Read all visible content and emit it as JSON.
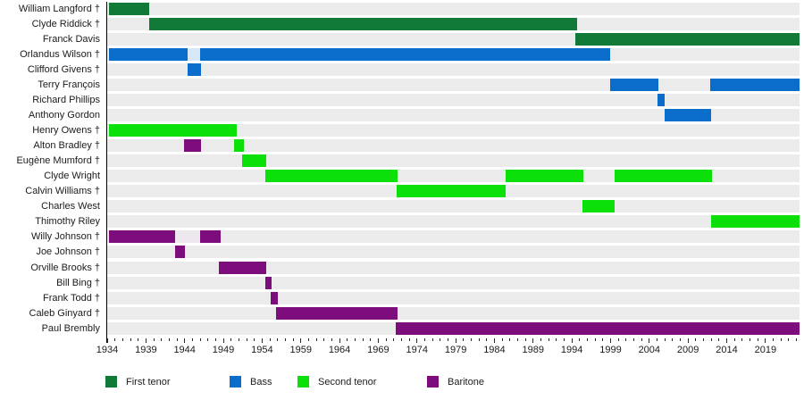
{
  "chart_data": {
    "type": "timeline",
    "title": "",
    "x_axis": {
      "min": 1934,
      "max": 2023.4,
      "major_ticks": [
        1934,
        1939,
        1944,
        1949,
        1954,
        1959,
        1964,
        1969,
        1974,
        1979,
        1984,
        1989,
        1994,
        1999,
        2004,
        2009,
        2014,
        2019
      ],
      "minor_tick_every": 1
    },
    "parts": {
      "first_tenor": {
        "label": "First tenor",
        "color": "#127a38"
      },
      "bass": {
        "label": "Bass",
        "color": "#0b6dcb"
      },
      "second_tenor": {
        "label": "Second tenor",
        "color": "#0be00b"
      },
      "baritone": {
        "label": "Baritone",
        "color": "#7d0c7d"
      },
      "bass_leave": {
        "label": "",
        "color": "#d9e8f8"
      },
      "baritone_leave": {
        "label": "",
        "color": "#ece8ee"
      }
    },
    "legend": [
      {
        "part": "first_tenor",
        "label": "First tenor"
      },
      {
        "part": "bass",
        "label": "Bass"
      },
      {
        "part": "second_tenor",
        "label": "Second tenor"
      },
      {
        "part": "baritone",
        "label": "Baritone"
      }
    ],
    "members": [
      {
        "name": "William Langford †",
        "segments": [
          {
            "part": "first_tenor",
            "start": 1934.2,
            "end": 1939.4
          }
        ]
      },
      {
        "name": "Clyde Riddick †",
        "segments": [
          {
            "part": "first_tenor",
            "start": 1939.4,
            "end": 1994.7
          }
        ]
      },
      {
        "name": "Franck Davis",
        "segments": [
          {
            "part": "first_tenor",
            "start": 1994.4,
            "end": 2023.4
          }
        ]
      },
      {
        "name": "Orlandus Wilson †",
        "segments": [
          {
            "part": "bass",
            "start": 1934.2,
            "end": 1944.4
          },
          {
            "part": "bass_leave",
            "start": 1944.4,
            "end": 1946.0
          },
          {
            "part": "bass",
            "start": 1946.0,
            "end": 1999.0
          }
        ]
      },
      {
        "name": "Clifford Givens †",
        "segments": [
          {
            "part": "bass",
            "start": 1944.4,
            "end": 1946.1
          }
        ]
      },
      {
        "name": "Terry François",
        "segments": [
          {
            "part": "bass",
            "start": 1999.0,
            "end": 2005.2
          },
          {
            "part": "bass",
            "start": 2011.9,
            "end": 2023.4
          }
        ]
      },
      {
        "name": "Richard Phillips",
        "segments": [
          {
            "part": "bass",
            "start": 2005.1,
            "end": 2006.0
          }
        ]
      },
      {
        "name": "Anthony Gordon",
        "segments": [
          {
            "part": "bass",
            "start": 2006.0,
            "end": 2012.0
          }
        ]
      },
      {
        "name": "Henry Owens †",
        "segments": [
          {
            "part": "second_tenor",
            "start": 1934.2,
            "end": 1950.7
          }
        ]
      },
      {
        "name": "Alton Bradley †",
        "segments": [
          {
            "part": "baritone",
            "start": 1943.9,
            "end": 1946.1
          },
          {
            "part": "second_tenor",
            "start": 1950.4,
            "end": 1951.6
          }
        ]
      },
      {
        "name": "Eugène Mumford †",
        "segments": [
          {
            "part": "second_tenor",
            "start": 1951.4,
            "end": 1954.5
          }
        ]
      },
      {
        "name": "Clyde Wright",
        "segments": [
          {
            "part": "second_tenor",
            "start": 1954.4,
            "end": 1971.5
          },
          {
            "part": "second_tenor",
            "start": 1985.5,
            "end": 1995.5
          },
          {
            "part": "second_tenor",
            "start": 1999.5,
            "end": 2012.1
          }
        ]
      },
      {
        "name": "Calvin Williams †",
        "segments": [
          {
            "part": "second_tenor",
            "start": 1971.4,
            "end": 1985.4
          }
        ]
      },
      {
        "name": "Charles West",
        "segments": [
          {
            "part": "second_tenor",
            "start": 1995.4,
            "end": 1999.5
          }
        ]
      },
      {
        "name": "Thimothy Riley",
        "segments": [
          {
            "part": "second_tenor",
            "start": 2012.0,
            "end": 2023.4
          }
        ]
      },
      {
        "name": "Willy Johnson †",
        "segments": [
          {
            "part": "baritone",
            "start": 1934.2,
            "end": 1942.8
          },
          {
            "part": "baritone_leave",
            "start": 1942.8,
            "end": 1946.0
          },
          {
            "part": "baritone",
            "start": 1946.0,
            "end": 1948.7
          }
        ]
      },
      {
        "name": "Joe Johnson †",
        "segments": [
          {
            "part": "baritone",
            "start": 1942.8,
            "end": 1944.0
          }
        ]
      },
      {
        "name": "Orville Brooks †",
        "segments": [
          {
            "part": "baritone",
            "start": 1948.4,
            "end": 1954.5
          }
        ]
      },
      {
        "name": "Bill Bing †",
        "segments": [
          {
            "part": "baritone",
            "start": 1954.4,
            "end": 1955.2
          }
        ]
      },
      {
        "name": "Frank Todd †",
        "segments": [
          {
            "part": "baritone",
            "start": 1955.1,
            "end": 1956.0
          }
        ]
      },
      {
        "name": "Caleb Ginyard †",
        "segments": [
          {
            "part": "baritone",
            "start": 1955.8,
            "end": 1971.5
          }
        ]
      },
      {
        "name": "Paul Brembly",
        "segments": [
          {
            "part": "baritone",
            "start": 1971.3,
            "end": 2023.4
          }
        ]
      }
    ]
  },
  "styles": {
    "background": "#ffffff",
    "track_color": "#ebebeb",
    "axis_color": "#000000",
    "text_color": "#1b1b1b"
  }
}
